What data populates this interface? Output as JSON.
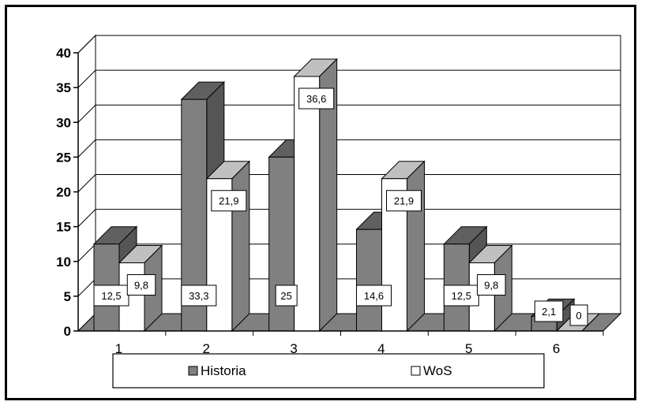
{
  "chart_data": {
    "type": "bar",
    "categories": [
      "1",
      "2",
      "3",
      "4",
      "5",
      "6"
    ],
    "series": [
      {
        "name": "Historia",
        "values": [
          12.5,
          33.3,
          25,
          14.6,
          12.5,
          2.1
        ],
        "labels": [
          "12,5",
          "33,3",
          "25",
          "14,6",
          "12,5",
          "2,1"
        ]
      },
      {
        "name": "WoS",
        "values": [
          9.8,
          21.9,
          36.6,
          21.9,
          9.8,
          0
        ],
        "labels": [
          "9,8",
          "21,9",
          "36,6",
          "21,9",
          "9,8",
          "0"
        ]
      }
    ],
    "ylim": [
      0,
      40
    ],
    "yticks": [
      "0",
      "5",
      "10",
      "15",
      "20",
      "25",
      "30",
      "35",
      "40"
    ],
    "grid": true,
    "legend_position": "bottom",
    "colors": {
      "historia_front": "#808080",
      "historia_top": "#606060",
      "historia_side": "#555555",
      "wos_front": "#ffffff",
      "wos_top": "#c0c0c0",
      "wos_side": "#808080",
      "floor": "#808080",
      "plot_bg": "#ffffff"
    }
  }
}
